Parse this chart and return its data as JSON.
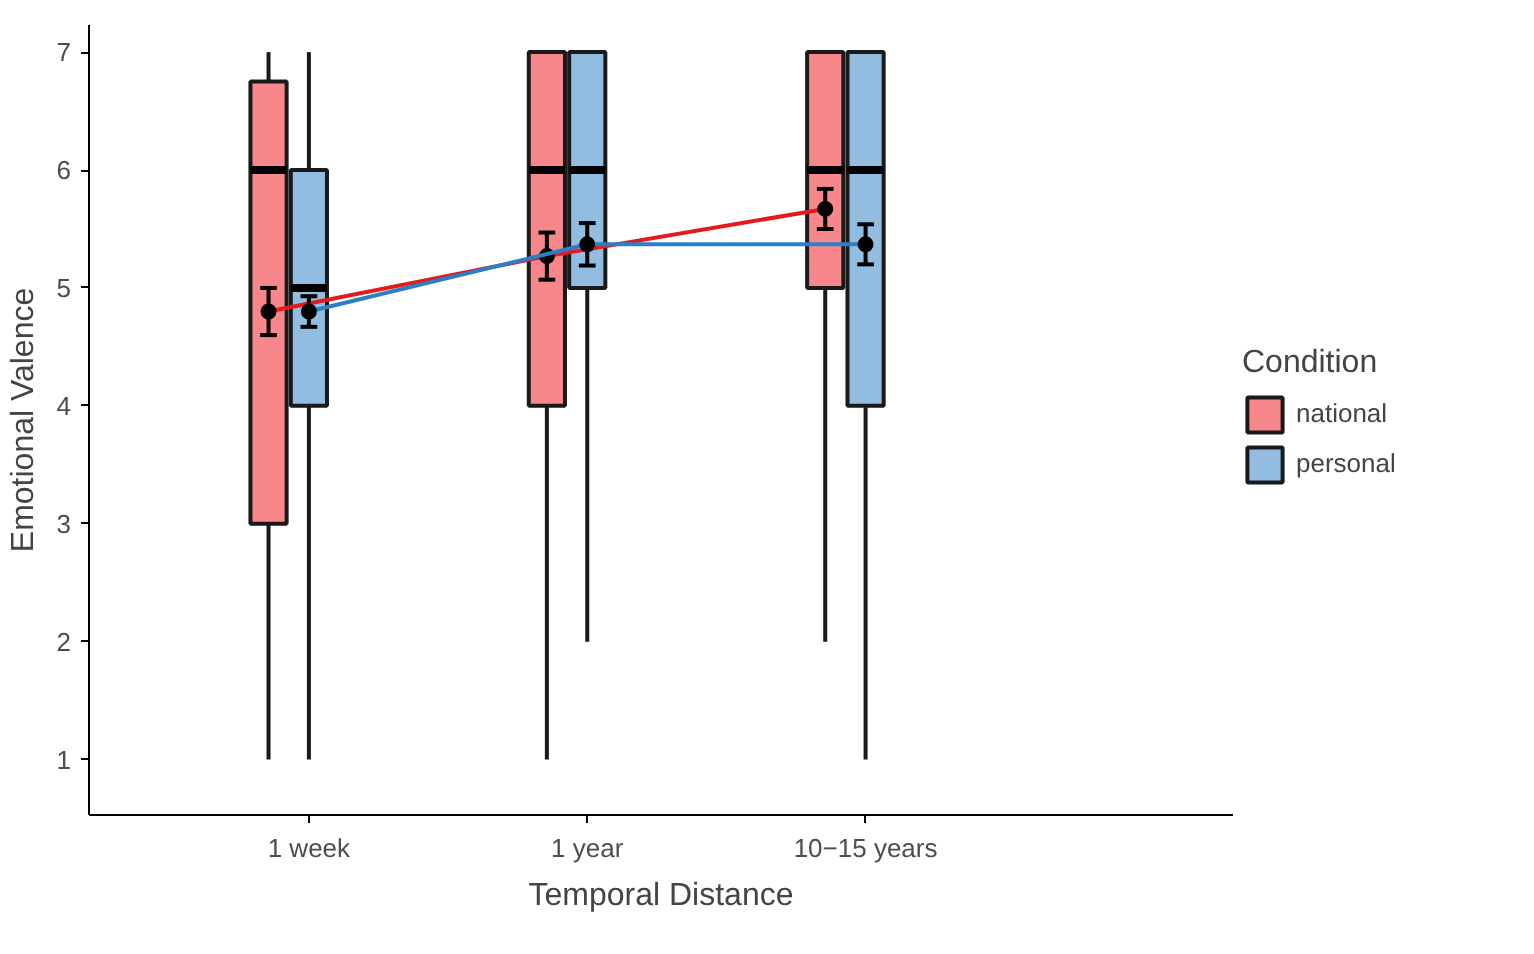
{
  "chart_data": {
    "type": "box",
    "xlabel": "Temporal Distance",
    "ylabel": "Emotional Valence",
    "legend_title": "Condition",
    "legend": "right",
    "grid": false,
    "categories": [
      "1 week",
      "1 year",
      "10−15 years"
    ],
    "ylim": [
      0.53,
      7.23
    ],
    "yticks": [
      1,
      2,
      3,
      4,
      5,
      6,
      7
    ],
    "series": [
      {
        "name": "national",
        "color": "#f8878c",
        "boxes": [
          {
            "low": 1,
            "q1": 3,
            "median": 6,
            "q3": 6.75,
            "high": 7
          },
          {
            "low": 1,
            "q1": 4,
            "median": 6,
            "q3": 7,
            "high": 7
          },
          {
            "low": 2,
            "q1": 5,
            "median": 6,
            "q3": 7,
            "high": 7
          }
        ]
      },
      {
        "name": "personal",
        "color": "#92bde0",
        "boxes": [
          {
            "low": 1,
            "q1": 4,
            "median": 5,
            "q3": 6,
            "high": 7
          },
          {
            "low": 2,
            "q1": 5,
            "median": 6,
            "q3": 7,
            "high": 7
          },
          {
            "low": 1,
            "q1": 4,
            "median": 6,
            "q3": 7,
            "high": 7
          }
        ]
      },
      {
        "type": "line",
        "color": "#e41a1c",
        "marker": "circle",
        "values": [
          4.8,
          5.27,
          5.67
        ],
        "errors": [
          0.2,
          0.2,
          0.17
        ]
      },
      {
        "type": "line",
        "color": "#2b7fc4",
        "marker": "circle",
        "values": [
          4.8,
          5.37,
          5.37
        ],
        "errors": [
          0.13,
          0.18,
          0.17
        ]
      }
    ]
  }
}
